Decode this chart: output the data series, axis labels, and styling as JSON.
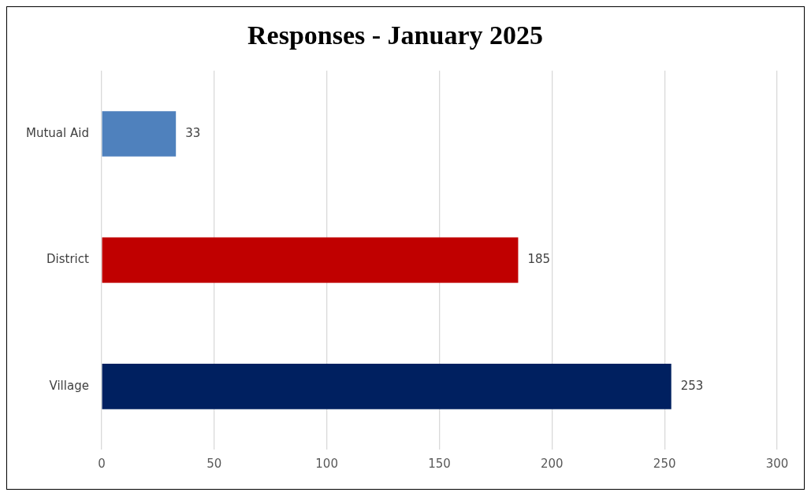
{
  "chart_data": {
    "type": "bar",
    "orientation": "horizontal",
    "title": "Responses - January 2025",
    "categories": [
      "Mutual Aid",
      "District",
      "Village"
    ],
    "values": [
      33,
      185,
      253
    ],
    "colors": [
      "#4f81bd",
      "#c00000",
      "#002060"
    ],
    "xlim": [
      0,
      300
    ],
    "xticks": [
      0,
      50,
      100,
      150,
      200,
      250,
      300
    ],
    "grid": "x",
    "data_labels": true
  }
}
